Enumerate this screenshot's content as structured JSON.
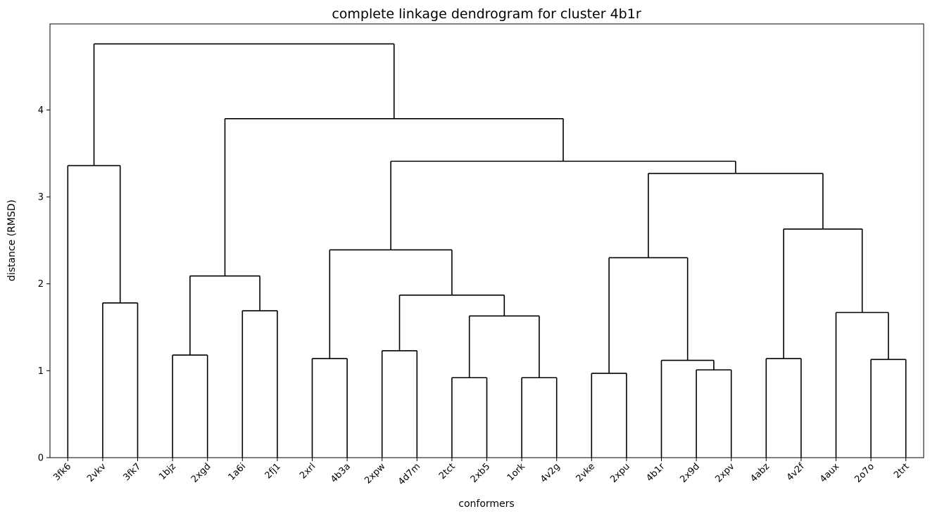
{
  "chart_data": {
    "type": "dendrogram",
    "title": "complete linkage dendrogram for cluster 4b1r",
    "xlabel": "conformers",
    "ylabel": "distance (RMSD)",
    "ylim": [
      0,
      5.0
    ],
    "yticks": [
      0,
      1,
      2,
      3,
      4
    ],
    "grid": false,
    "line_color": "#000000",
    "leaves": [
      "3fk6",
      "2vkv",
      "3fk7",
      "1bjz",
      "2xgd",
      "1a6i",
      "2fj1",
      "2xrl",
      "4b3a",
      "2xpw",
      "4d7m",
      "2tct",
      "2xb5",
      "1ork",
      "4v2g",
      "2vke",
      "2xpu",
      "4b1r",
      "2x9d",
      "2xpv",
      "4abz",
      "4v2f",
      "4aux",
      "2o7o",
      "2trt"
    ],
    "merges": [
      {
        "left": "2vkv",
        "right": "3fk7",
        "height": 1.78
      },
      {
        "left": "3fk6",
        "right": 1,
        "height": 3.36
      },
      {
        "left": "1bjz",
        "right": "2xgd",
        "height": 1.18
      },
      {
        "left": "1a6i",
        "right": "2fj1",
        "height": 1.69
      },
      {
        "left": 3,
        "right": 4,
        "height": 2.09
      },
      {
        "left": "2xrl",
        "right": "4b3a",
        "height": 1.14
      },
      {
        "left": "2xpw",
        "right": "4d7m",
        "height": 1.23
      },
      {
        "left": "2tct",
        "right": "2xb5",
        "height": 0.92
      },
      {
        "left": "1ork",
        "right": "4v2g",
        "height": 0.92
      },
      {
        "left": 8,
        "right": 9,
        "height": 1.63
      },
      {
        "left": 7,
        "right": 10,
        "height": 1.87
      },
      {
        "left": 6,
        "right": 11,
        "height": 2.39
      },
      {
        "left": "2vke",
        "right": "2xpu",
        "height": 0.97
      },
      {
        "left": "2x9d",
        "right": "2xpv",
        "height": 1.01
      },
      {
        "left": "4b1r",
        "right": 14,
        "height": 1.12
      },
      {
        "left": 13,
        "right": 15,
        "height": 2.3
      },
      {
        "left": "4abz",
        "right": "4v2f",
        "height": 1.14
      },
      {
        "left": "2o7o",
        "right": "2trt",
        "height": 1.13
      },
      {
        "left": "4aux",
        "right": 18,
        "height": 1.67
      },
      {
        "left": 17,
        "right": 19,
        "height": 2.63
      },
      {
        "left": 16,
        "right": 20,
        "height": 3.27
      },
      {
        "left": 12,
        "right": 21,
        "height": 3.41
      },
      {
        "left": 5,
        "right": 22,
        "height": 3.9
      },
      {
        "left": 2,
        "right": 23,
        "height": 4.76
      }
    ]
  }
}
